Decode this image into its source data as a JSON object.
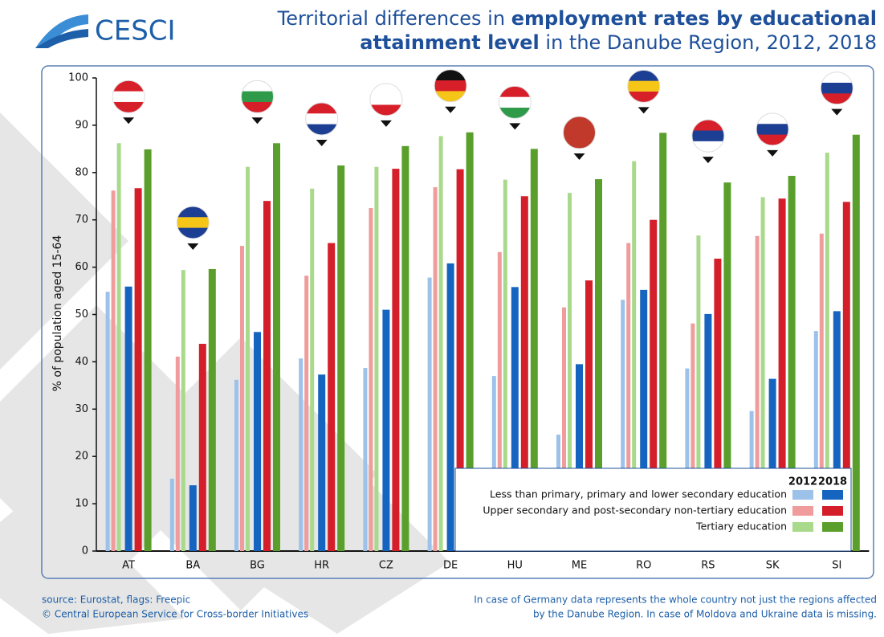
{
  "chart_data": {
    "type": "bar",
    "logo": "CESCI",
    "title": [
      [
        "Territorial differences in ",
        "employment rates by educational"
      ],
      [
        "attainment level",
        " in the Danube Region, 2012, 2018"
      ]
    ],
    "ylabel": "% of population aged 15-64",
    "categories": [
      "AT",
      "BA",
      "BG",
      "HR",
      "CZ",
      "DE",
      "HU",
      "ME",
      "RO",
      "RS",
      "SK",
      "SI"
    ],
    "ylim": [
      0,
      100
    ],
    "yticks": [
      0,
      10,
      20,
      30,
      40,
      50,
      60,
      70,
      80,
      90,
      100
    ],
    "years": [
      "2012",
      "2018"
    ],
    "series": [
      {
        "name": "Less than primary, primary and lower secondary education",
        "colors": [
          "#9cc2ea",
          "#1565c0"
        ],
        "values": [
          [
            54.8,
            15.3,
            36.2,
            40.7,
            38.7,
            57.8,
            37.0,
            24.6,
            53.1,
            38.6,
            29.6,
            46.5
          ],
          [
            55.9,
            13.9,
            46.3,
            37.3,
            51.0,
            60.8,
            55.8,
            39.5,
            55.2,
            50.1,
            36.4,
            50.7
          ]
        ]
      },
      {
        "name": "Upper secondary and post-secondary non-tertiary education",
        "colors": [
          "#f09c9c",
          "#d41f2a"
        ],
        "values": [
          [
            76.2,
            41.1,
            64.5,
            58.2,
            72.5,
            76.9,
            63.2,
            51.5,
            65.1,
            48.1,
            66.6,
            67.1
          ],
          [
            76.7,
            43.8,
            74.0,
            65.1,
            80.8,
            80.7,
            75.0,
            57.2,
            70.0,
            61.8,
            74.5,
            73.8
          ]
        ]
      },
      {
        "name": "Tertiary education",
        "colors": [
          "#a9da8b",
          "#5a9f2b"
        ],
        "values": [
          [
            86.2,
            59.4,
            81.2,
            76.6,
            81.2,
            87.7,
            78.5,
            75.7,
            82.4,
            66.7,
            74.8,
            84.2
          ],
          [
            84.9,
            59.6,
            86.2,
            81.5,
            85.6,
            88.5,
            85.0,
            78.6,
            88.4,
            77.9,
            79.3,
            88.0
          ]
        ]
      }
    ],
    "source": [
      "source: Eurostat, flags: Freepic",
      "© Central European Service for Cross-border Initiatives"
    ],
    "note": [
      "In case of Germany data represents the whole country not just the regions affected",
      "by the Danube Region. In case of Moldova and Ukraine data is missing."
    ]
  }
}
